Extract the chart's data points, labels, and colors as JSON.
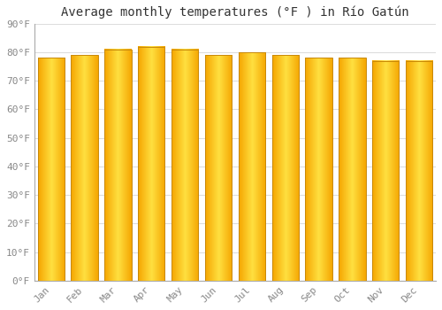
{
  "title": "Average monthly temperatures (°F ) in Río Gatún",
  "months": [
    "Jan",
    "Feb",
    "Mar",
    "Apr",
    "May",
    "Jun",
    "Jul",
    "Aug",
    "Sep",
    "Oct",
    "Nov",
    "Dec"
  ],
  "values": [
    78,
    79,
    81,
    82,
    81,
    79,
    80,
    79,
    78,
    78,
    77,
    77
  ],
  "bar_color_center": "#FFE040",
  "bar_color_edge": "#F5A500",
  "background_color": "#FFFFFF",
  "grid_color": "#DDDDDD",
  "ylim": [
    0,
    90
  ],
  "yticks": [
    0,
    10,
    20,
    30,
    40,
    50,
    60,
    70,
    80,
    90
  ],
  "ytick_labels": [
    "0°F",
    "10°F",
    "20°F",
    "30°F",
    "40°F",
    "50°F",
    "60°F",
    "70°F",
    "80°F",
    "90°F"
  ],
  "title_fontsize": 10,
  "tick_fontsize": 8,
  "bar_width": 0.8
}
